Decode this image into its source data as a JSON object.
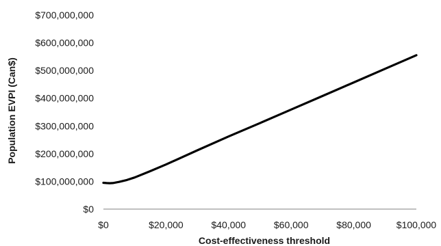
{
  "chart_data": {
    "type": "line",
    "xlabel": "Cost-effectiveness threshold",
    "ylabel": "Population EVPI (Can$)",
    "xlim": [
      0,
      100000
    ],
    "ylim": [
      0,
      700000000
    ],
    "x_ticks": [
      0,
      20000,
      40000,
      60000,
      80000,
      100000
    ],
    "x_tick_labels": [
      "$0",
      "$20,000",
      "$40,000",
      "$60,000",
      "$80,000",
      "$100,000"
    ],
    "y_ticks": [
      0,
      100000000,
      200000000,
      300000000,
      400000000,
      500000000,
      600000000,
      700000000
    ],
    "y_tick_labels": [
      "$0",
      "$100,000,000",
      "$200,000,000",
      "$300,000,000",
      "$400,000,000",
      "$500,000,000",
      "$600,000,000",
      "$700,000,000"
    ],
    "grid": false,
    "line_color": "#000000",
    "series": [
      {
        "x": [
          0,
          1000,
          2000,
          3000,
          5000,
          7500,
          10000,
          15000,
          20000,
          30000,
          40000,
          50000,
          60000,
          70000,
          80000,
          90000,
          100000
        ],
        "values": [
          95000000,
          94000000,
          93500000,
          94000000,
          98000000,
          105000000,
          114000000,
          137000000,
          161000000,
          212000000,
          262000000,
          310000000,
          359000000,
          408000000,
          457000000,
          506000000,
          555000000
        ]
      }
    ]
  }
}
